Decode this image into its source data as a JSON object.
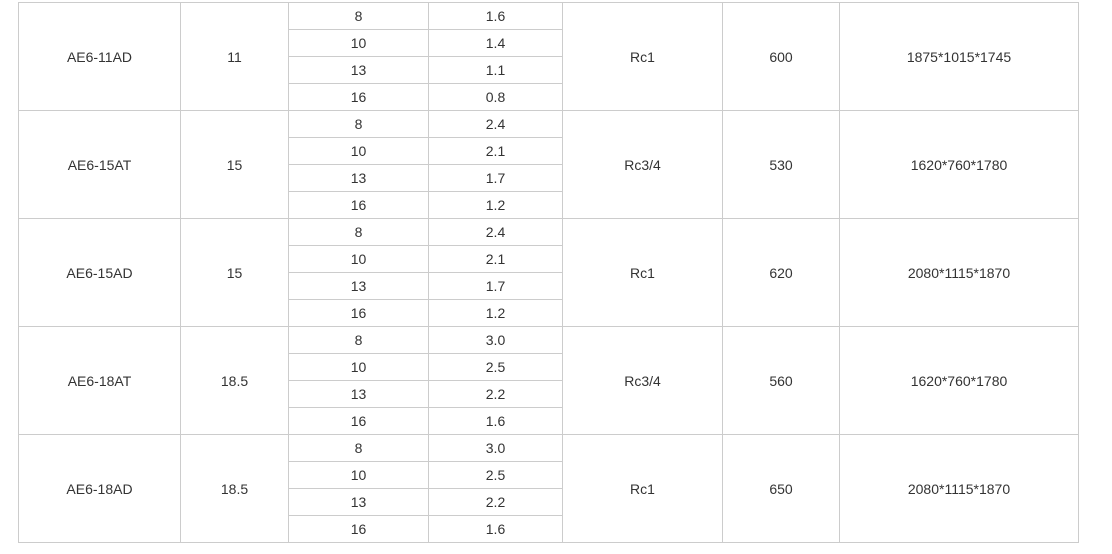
{
  "colors": {
    "border": "#cccccc",
    "text": "#333333",
    "background": "#ffffff"
  },
  "table": {
    "rows": [
      {
        "model": "AE6-11AD",
        "power": "11",
        "sub_rows": [
          {
            "pressure": "8",
            "flow": "1.6"
          },
          {
            "pressure": "10",
            "flow": "1.4"
          },
          {
            "pressure": "13",
            "flow": "1.1"
          },
          {
            "pressure": "16",
            "flow": "0.8"
          }
        ],
        "outlet": "Rc1",
        "weight": "600",
        "dimensions": "1875*1015*1745"
      },
      {
        "model": "AE6-15AT",
        "power": "15",
        "sub_rows": [
          {
            "pressure": "8",
            "flow": "2.4"
          },
          {
            "pressure": "10",
            "flow": "2.1"
          },
          {
            "pressure": "13",
            "flow": "1.7"
          },
          {
            "pressure": "16",
            "flow": "1.2"
          }
        ],
        "outlet": "Rc3/4",
        "weight": "530",
        "dimensions": "1620*760*1780"
      },
      {
        "model": "AE6-15AD",
        "power": "15",
        "sub_rows": [
          {
            "pressure": "8",
            "flow": "2.4"
          },
          {
            "pressure": "10",
            "flow": "2.1"
          },
          {
            "pressure": "13",
            "flow": "1.7"
          },
          {
            "pressure": "16",
            "flow": "1.2"
          }
        ],
        "outlet": "Rc1",
        "weight": "620",
        "dimensions": "2080*1115*1870"
      },
      {
        "model": "AE6-18AT",
        "power": "18.5",
        "sub_rows": [
          {
            "pressure": "8",
            "flow": "3.0"
          },
          {
            "pressure": "10",
            "flow": "2.5"
          },
          {
            "pressure": "13",
            "flow": "2.2"
          },
          {
            "pressure": "16",
            "flow": "1.6"
          }
        ],
        "outlet": "Rc3/4",
        "weight": "560",
        "dimensions": "1620*760*1780"
      },
      {
        "model": "AE6-18AD",
        "power": "18.5",
        "sub_rows": [
          {
            "pressure": "8",
            "flow": "3.0"
          },
          {
            "pressure": "10",
            "flow": "2.5"
          },
          {
            "pressure": "13",
            "flow": "2.2"
          },
          {
            "pressure": "16",
            "flow": "1.6"
          }
        ],
        "outlet": "Rc1",
        "weight": "650",
        "dimensions": "2080*1115*1870"
      }
    ]
  }
}
